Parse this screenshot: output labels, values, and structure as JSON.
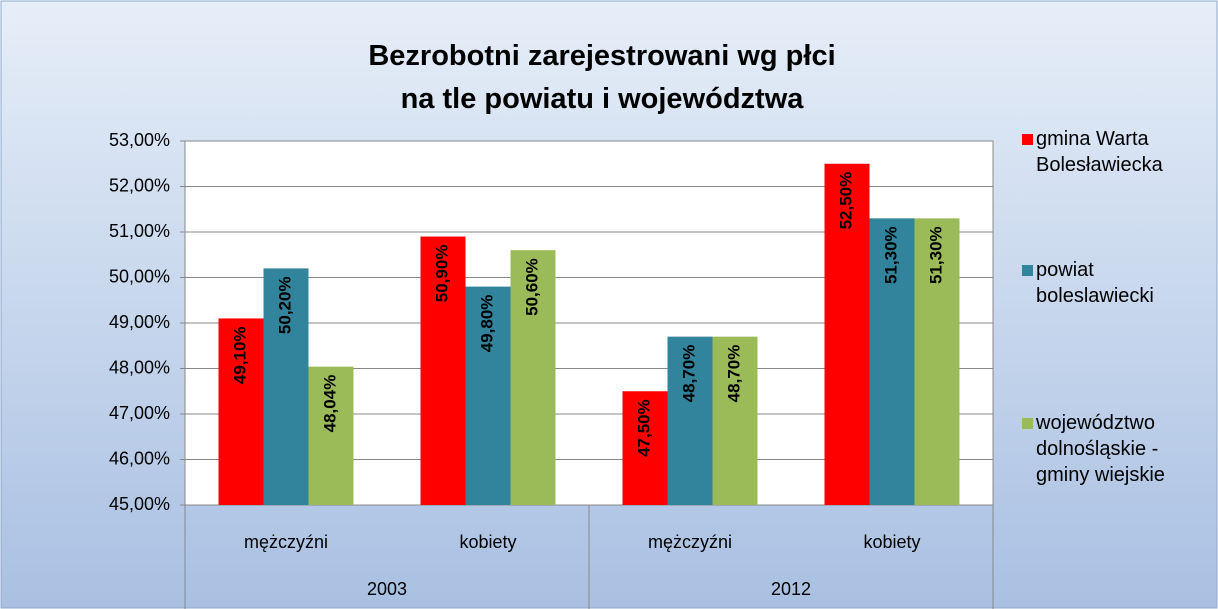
{
  "chart_data": {
    "type": "bar",
    "title": "Bezrobotni zarejestrowani wg płci na tle powiatu i województwa",
    "categories": [
      "mężczyźni",
      "kobiety",
      "mężczyźni",
      "kobiety"
    ],
    "category_groups": [
      "2003",
      "2012"
    ],
    "series": [
      {
        "name": "gmina Warta Bolesławiecka",
        "color": "#ff0000",
        "values": [
          49.1,
          50.9,
          47.5,
          52.5
        ],
        "value_labels": [
          "49,10%",
          "50,90%",
          "47,50%",
          "52,50%"
        ]
      },
      {
        "name": "powiat boleslawiecki",
        "color": "#31849b",
        "values": [
          50.2,
          49.8,
          48.7,
          51.3
        ],
        "value_labels": [
          "50,20%",
          "49,80%",
          "48,70%",
          "51,30%"
        ]
      },
      {
        "name": "województwo dolnośląskie - gminy wiejskie",
        "color": "#9bbb59",
        "values": [
          48.04,
          50.6,
          48.7,
          51.3
        ],
        "value_labels": [
          "48,04%",
          "50,60%",
          "48,70%",
          "51,30%"
        ]
      }
    ],
    "ylim": [
      45,
      53
    ],
    "yticks": [
      {
        "value": 45,
        "label": "45,00%"
      },
      {
        "value": 46,
        "label": "46,00%"
      },
      {
        "value": 47,
        "label": "47,00%"
      },
      {
        "value": 48,
        "label": "48,00%"
      },
      {
        "value": 49,
        "label": "49,00%"
      },
      {
        "value": 50,
        "label": "50,00%"
      },
      {
        "value": 51,
        "label": "51,00%"
      },
      {
        "value": 52,
        "label": "52,00%"
      },
      {
        "value": 53,
        "label": "53,00%"
      }
    ],
    "grid": true,
    "legend": "right"
  }
}
